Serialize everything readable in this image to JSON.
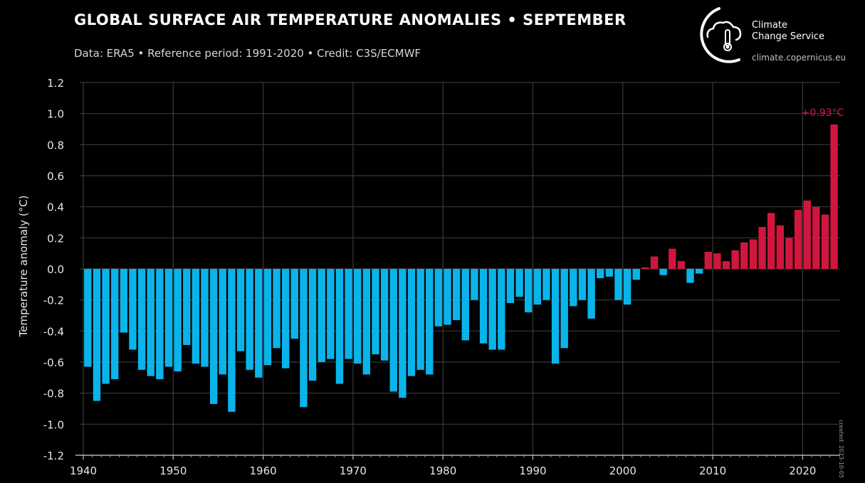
{
  "header": {
    "title": "GLOBAL SURFACE AIR TEMPERATURE ANOMALIES • SEPTEMBER",
    "subtitle": "Data: ERA5 • Reference period: 1991-2020 • Credit: C3S/ECMWF"
  },
  "logo": {
    "line1": "Climate",
    "line2": "Change Service",
    "url": "climate.copernicus.eu"
  },
  "created_stamp": "created: 2023-10-05",
  "colors": {
    "negative": "#0ab4ea",
    "positive": "#d1163e",
    "grid": "#3a3a3a",
    "axis_text": "#e6e6e6",
    "background": "#000000"
  },
  "chart_data": {
    "type": "bar",
    "title": "GLOBAL SURFACE AIR TEMPERATURE ANOMALIES • SEPTEMBER",
    "xlabel": "",
    "ylabel": "Temperature anomaly (°C)",
    "ylim": [
      -1.2,
      1.2
    ],
    "yticks": [
      "1.2",
      "1.0",
      "0.8",
      "0.6",
      "0.4",
      "0.2",
      "0.0",
      "-0.2",
      "-0.4",
      "-0.6",
      "-0.8",
      "-1.0",
      "-1.2"
    ],
    "xticks": [
      "1940",
      "1950",
      "1960",
      "1970",
      "1980",
      "1990",
      "2000",
      "2010",
      "2020"
    ],
    "grid": true,
    "annotation": {
      "year": 2023,
      "label": "+0.93°C"
    },
    "years": [
      1940,
      1941,
      1942,
      1943,
      1944,
      1945,
      1946,
      1947,
      1948,
      1949,
      1950,
      1951,
      1952,
      1953,
      1954,
      1955,
      1956,
      1957,
      1958,
      1959,
      1960,
      1961,
      1962,
      1963,
      1964,
      1965,
      1966,
      1967,
      1968,
      1969,
      1970,
      1971,
      1972,
      1973,
      1974,
      1975,
      1976,
      1977,
      1978,
      1979,
      1980,
      1981,
      1982,
      1983,
      1984,
      1985,
      1986,
      1987,
      1988,
      1989,
      1990,
      1991,
      1992,
      1993,
      1994,
      1995,
      1996,
      1997,
      1998,
      1999,
      2000,
      2001,
      2002,
      2003,
      2004,
      2005,
      2006,
      2007,
      2008,
      2009,
      2010,
      2011,
      2012,
      2013,
      2014,
      2015,
      2016,
      2017,
      2018,
      2019,
      2020,
      2021,
      2022,
      2023
    ],
    "values": [
      -0.63,
      -0.85,
      -0.74,
      -0.71,
      -0.41,
      -0.52,
      -0.65,
      -0.69,
      -0.71,
      -0.63,
      -0.66,
      -0.49,
      -0.61,
      -0.63,
      -0.87,
      -0.68,
      -0.92,
      -0.53,
      -0.65,
      -0.7,
      -0.62,
      -0.51,
      -0.64,
      -0.45,
      -0.89,
      -0.72,
      -0.6,
      -0.58,
      -0.74,
      -0.58,
      -0.61,
      -0.68,
      -0.55,
      -0.59,
      -0.79,
      -0.83,
      -0.69,
      -0.65,
      -0.68,
      -0.37,
      -0.36,
      -0.33,
      -0.46,
      -0.2,
      -0.48,
      -0.52,
      -0.52,
      -0.22,
      -0.18,
      -0.28,
      -0.23,
      -0.2,
      -0.61,
      -0.51,
      -0.24,
      -0.2,
      -0.32,
      -0.06,
      -0.05,
      -0.2,
      -0.23,
      -0.07,
      0.01,
      0.08,
      -0.04,
      0.13,
      0.05,
      -0.09,
      -0.03,
      0.11,
      0.1,
      0.05,
      0.12,
      0.17,
      0.19,
      0.27,
      0.36,
      0.28,
      0.2,
      0.38,
      0.44,
      0.4,
      0.35,
      0.93
    ]
  }
}
